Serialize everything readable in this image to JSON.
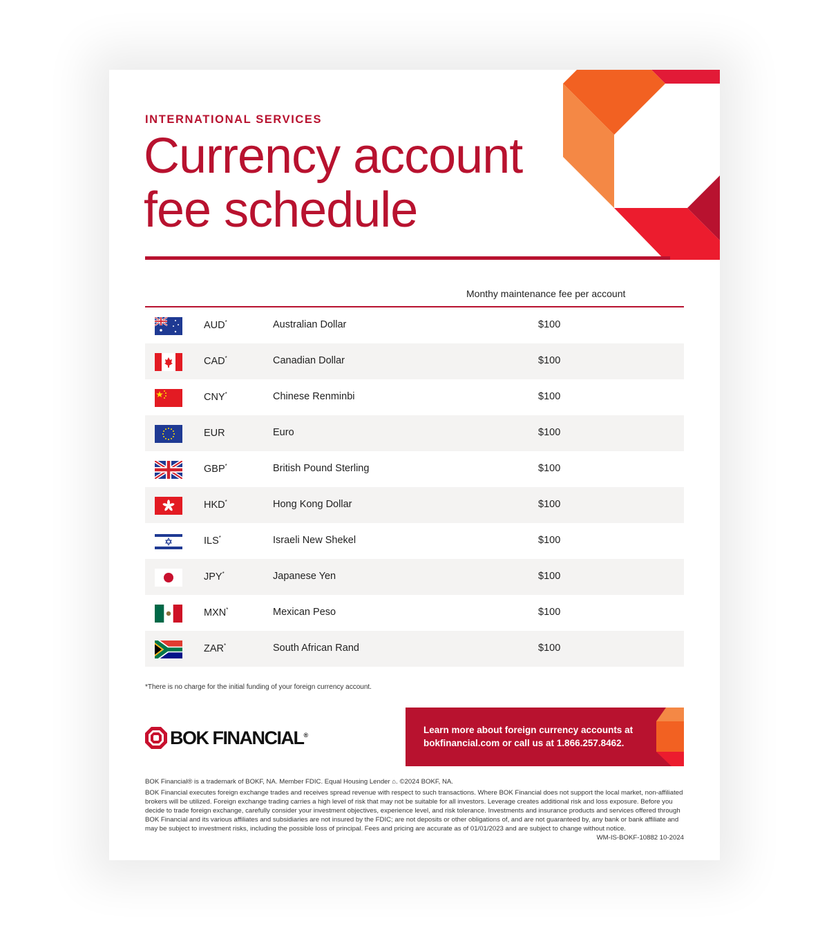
{
  "header": {
    "eyebrow": "INTERNATIONAL SERVICES",
    "title_line1": "Currency account",
    "title_line2": "fee schedule"
  },
  "table": {
    "column_header": "Monthy maintenance fee per account",
    "rows": [
      {
        "flag": "australia-flag",
        "code": "AUD",
        "asterisk": "*",
        "name": "Australian Dollar",
        "fee": "$100"
      },
      {
        "flag": "canada-flag",
        "code": "CAD",
        "asterisk": "*",
        "name": "Canadian Dollar",
        "fee": "$100"
      },
      {
        "flag": "china-flag",
        "code": "CNY",
        "asterisk": "*",
        "name": "Chinese Renminbi",
        "fee": "$100"
      },
      {
        "flag": "eu-flag",
        "code": "EUR",
        "asterisk": "",
        "name": "Euro",
        "fee": "$100"
      },
      {
        "flag": "uk-flag",
        "code": "GBP",
        "asterisk": "*",
        "name": "British Pound Sterling",
        "fee": "$100"
      },
      {
        "flag": "hong-kong-flag",
        "code": "HKD",
        "asterisk": "*",
        "name": "Hong Kong Dollar",
        "fee": "$100"
      },
      {
        "flag": "israel-flag",
        "code": "ILS",
        "asterisk": "*",
        "name": "Israeli New Shekel",
        "fee": "$100"
      },
      {
        "flag": "japan-flag",
        "code": "JPY",
        "asterisk": "*",
        "name": "Japanese Yen",
        "fee": "$100"
      },
      {
        "flag": "mexico-flag",
        "code": "MXN",
        "asterisk": "*",
        "name": "Mexican Peso",
        "fee": "$100"
      },
      {
        "flag": "south-africa-flag",
        "code": "ZAR",
        "asterisk": "*",
        "name": "South African Rand",
        "fee": "$100"
      }
    ]
  },
  "footnote": "*There is no charge for the initial funding of your foreign currency account.",
  "logo": {
    "text": "BOK FINANCIAL",
    "mark": "®"
  },
  "cta": {
    "line1": "Learn more about foreign currency accounts at",
    "line2": "bokfinancial.com or call us at 1.866.257.8462."
  },
  "legal": {
    "trademark": "BOK Financial® is a trademark of BOKF, NA. Member FDIC. Equal Housing Lender ⌂. ©2024 BOKF, NA.",
    "disclosure": "BOK Financial executes foreign exchange trades and receives spread revenue with respect to such transactions. Where BOK Financial does not support the local market, non-affiliated brokers will be utilized. Foreign exchange trading carries a high level of risk that may not be suitable for all investors. Leverage creates additional risk and loss exposure. Before you decide to trade foreign exchange, carefully consider your investment objectives, experience level, and risk tolerance. Investments and insurance products and services offered through BOK Financial and its various affiliates and subsidiaries are not insured by the FDIC; are not deposits or other obligations of, and are not guaranteed by, any bank or bank affiliate and may be subject to investment risks, including the possible loss of principal. Fees and pricing are accurate as of 01/01/2023 and are subject to change without notice.",
    "doc_code": "WM-IS-BOKF-10882 10-2024"
  },
  "colors": {
    "brand_red": "#b8122f",
    "orange": "#f26122",
    "light_orange": "#f48845",
    "red": "#ec1c2e",
    "dark_red": "#b8122f",
    "row_alt": "#f4f3f2"
  }
}
